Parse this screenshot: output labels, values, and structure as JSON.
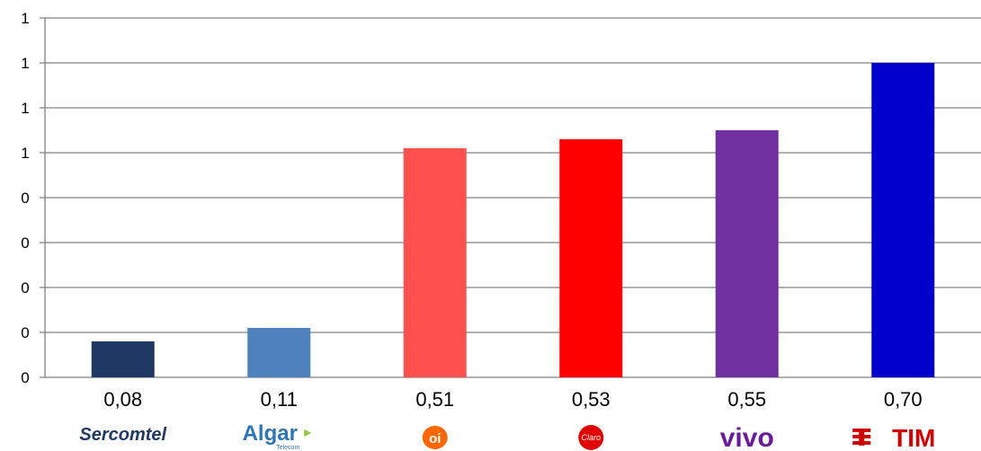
{
  "chart_data": {
    "type": "bar",
    "categories": [
      "Sercomtel",
      "Algar Telecom",
      "Oi",
      "Claro",
      "Vivo",
      "TIM"
    ],
    "values": [
      0.08,
      0.11,
      0.51,
      0.53,
      0.55,
      0.7
    ],
    "value_labels": [
      "0,08",
      "0,11",
      "0,51",
      "0,53",
      "0,55",
      "0,70"
    ],
    "colors": [
      "#1f3864",
      "#4f81bd",
      "#ff5050",
      "#ff0000",
      "#7030a0",
      "#0000cc"
    ],
    "ylim": [
      0,
      0.8
    ],
    "yticks": [
      0,
      0.1,
      0.2,
      0.3,
      0.4,
      0.5,
      0.6,
      0.7,
      0.8
    ],
    "ytick_labels": [
      "0",
      "0",
      "0",
      "0",
      "0",
      "1",
      "1",
      "1",
      "1"
    ],
    "grid": true,
    "title": "",
    "xlabel": "",
    "ylabel": ""
  },
  "logos": [
    {
      "text": "Sercomtel",
      "color": "#1f3864"
    },
    {
      "text": "Algar",
      "subtext": "Telecom",
      "color": "#2e75b6"
    },
    {
      "text": "oi",
      "color": "#ff6600"
    },
    {
      "text": "Claro",
      "color": "#e00000"
    },
    {
      "text": "vivo",
      "color": "#6a1b9a"
    },
    {
      "text": "TIM",
      "color": "#d00000"
    }
  ]
}
